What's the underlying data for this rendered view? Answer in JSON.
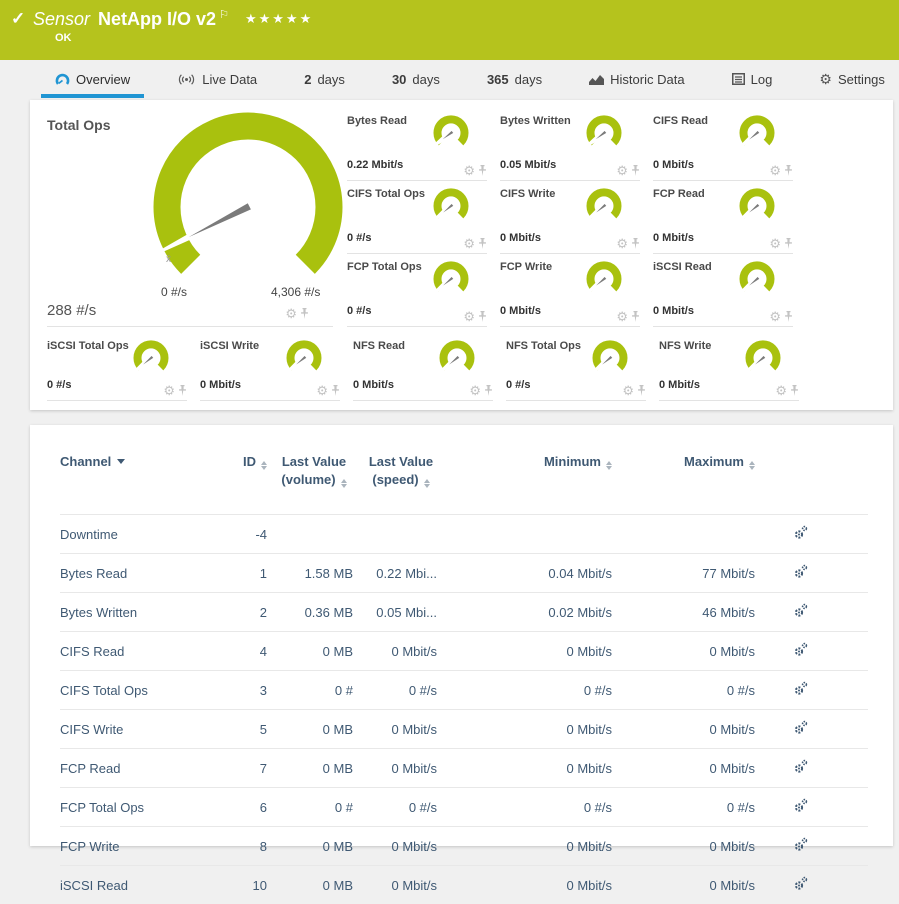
{
  "colors": {
    "header_green": "#b5c31d",
    "gauge_green": "#a9c10e",
    "accent_blue": "#2095d3",
    "table_text": "#3f5973"
  },
  "header": {
    "status_check": "✓",
    "type_label": "Sensor",
    "title": "NetApp I/O v2",
    "flag": "⚐",
    "stars": "★★★★★",
    "status": "OK"
  },
  "tabs": [
    {
      "id": "overview",
      "icon": "gauge-icon",
      "num": "",
      "label": "Overview",
      "active": true
    },
    {
      "id": "live-data",
      "icon": "broadcast-icon",
      "num": "",
      "label": "Live Data"
    },
    {
      "id": "2-days",
      "icon": "",
      "num": "2",
      "label": "days"
    },
    {
      "id": "30-days",
      "icon": "",
      "num": "30",
      "label": "days"
    },
    {
      "id": "365-days",
      "icon": "",
      "num": "365",
      "label": "days"
    },
    {
      "id": "historic-data",
      "icon": "chart-icon",
      "num": "",
      "label": "Historic Data"
    },
    {
      "id": "log",
      "icon": "list-icon",
      "num": "",
      "label": "Log"
    },
    {
      "id": "settings",
      "icon": "gear-icon",
      "num": "",
      "label": "Settings"
    }
  ],
  "gauges": {
    "main": {
      "label": "Total Ops",
      "value": "288 #/s",
      "min_label": "0 #/s",
      "max_label": "4,306 #/s",
      "avg_marker": "x̄",
      "fraction": 0.067
    },
    "grid": [
      {
        "label": "Bytes Read",
        "value": "0.22 Mbit/s",
        "fraction": 0.03
      },
      {
        "label": "Bytes Written",
        "value": "0.05 Mbit/s",
        "fraction": 0.03
      },
      {
        "label": "CIFS Read",
        "value": "0 Mbit/s",
        "fraction": 0.02
      },
      {
        "label": "CIFS Total Ops",
        "value": "0 #/s",
        "fraction": 0.02
      },
      {
        "label": "CIFS Write",
        "value": "0 Mbit/s",
        "fraction": 0.02
      },
      {
        "label": "FCP Read",
        "value": "0 Mbit/s",
        "fraction": 0.02
      },
      {
        "label": "FCP Total Ops",
        "value": "0 #/s",
        "fraction": 0.02
      },
      {
        "label": "FCP Write",
        "value": "0 Mbit/s",
        "fraction": 0.02
      },
      {
        "label": "iSCSI Read",
        "value": "0 Mbit/s",
        "fraction": 0.02
      }
    ],
    "bottom_row": [
      {
        "label": "iSCSI Total Ops",
        "value": "0 #/s",
        "fraction": 0.02
      },
      {
        "label": "iSCSI Write",
        "value": "0 Mbit/s",
        "fraction": 0.02
      },
      {
        "label": "NFS Read",
        "value": "0 Mbit/s",
        "fraction": 0.02
      },
      {
        "label": "NFS Total Ops",
        "value": "0 #/s",
        "fraction": 0.02
      },
      {
        "label": "NFS Write",
        "value": "0 Mbit/s",
        "fraction": 0.02
      }
    ]
  },
  "table": {
    "headers": [
      {
        "key": "channel",
        "label": "Channel",
        "cls": "c-ch",
        "filter": true
      },
      {
        "key": "id",
        "label": "ID",
        "cls": "c-id",
        "sort": true
      },
      {
        "key": "last_volume",
        "label": "Last Value (volume)",
        "cls": "c-lvv",
        "sort": true
      },
      {
        "key": "last_speed",
        "label": "Last Value (speed)",
        "cls": "c-lvs",
        "sort": true
      },
      {
        "key": "minimum",
        "label": "Minimum",
        "cls": "c-min",
        "sort": true
      },
      {
        "key": "maximum",
        "label": "Maximum",
        "cls": "c-max",
        "sort": true
      },
      {
        "key": "actions",
        "label": "",
        "cls": "c-ic"
      }
    ],
    "rows": [
      {
        "channel": "Downtime",
        "id": "-4",
        "last_volume": "",
        "last_speed": "",
        "minimum": "",
        "maximum": ""
      },
      {
        "channel": "Bytes Read",
        "id": "1",
        "last_volume": "1.58 MB",
        "last_speed": "0.22 Mbi...",
        "minimum": "0.04 Mbit/s",
        "maximum": "77 Mbit/s"
      },
      {
        "channel": "Bytes Written",
        "id": "2",
        "last_volume": "0.36 MB",
        "last_speed": "0.05 Mbi...",
        "minimum": "0.02 Mbit/s",
        "maximum": "46 Mbit/s"
      },
      {
        "channel": "CIFS Read",
        "id": "4",
        "last_volume": "0 MB",
        "last_speed": "0 Mbit/s",
        "minimum": "0 Mbit/s",
        "maximum": "0 Mbit/s"
      },
      {
        "channel": "CIFS Total Ops",
        "id": "3",
        "last_volume": "0 #",
        "last_speed": "0 #/s",
        "minimum": "0 #/s",
        "maximum": "0 #/s"
      },
      {
        "channel": "CIFS Write",
        "id": "5",
        "last_volume": "0 MB",
        "last_speed": "0 Mbit/s",
        "minimum": "0 Mbit/s",
        "maximum": "0 Mbit/s"
      },
      {
        "channel": "FCP Read",
        "id": "7",
        "last_volume": "0 MB",
        "last_speed": "0 Mbit/s",
        "minimum": "0 Mbit/s",
        "maximum": "0 Mbit/s"
      },
      {
        "channel": "FCP Total Ops",
        "id": "6",
        "last_volume": "0 #",
        "last_speed": "0 #/s",
        "minimum": "0 #/s",
        "maximum": "0 #/s"
      },
      {
        "channel": "FCP Write",
        "id": "8",
        "last_volume": "0 MB",
        "last_speed": "0 Mbit/s",
        "minimum": "0 Mbit/s",
        "maximum": "0 Mbit/s"
      },
      {
        "channel": "iSCSI Read",
        "id": "10",
        "last_volume": "0 MB",
        "last_speed": "0 Mbit/s",
        "minimum": "0 Mbit/s",
        "maximum": "0 Mbit/s"
      }
    ]
  }
}
